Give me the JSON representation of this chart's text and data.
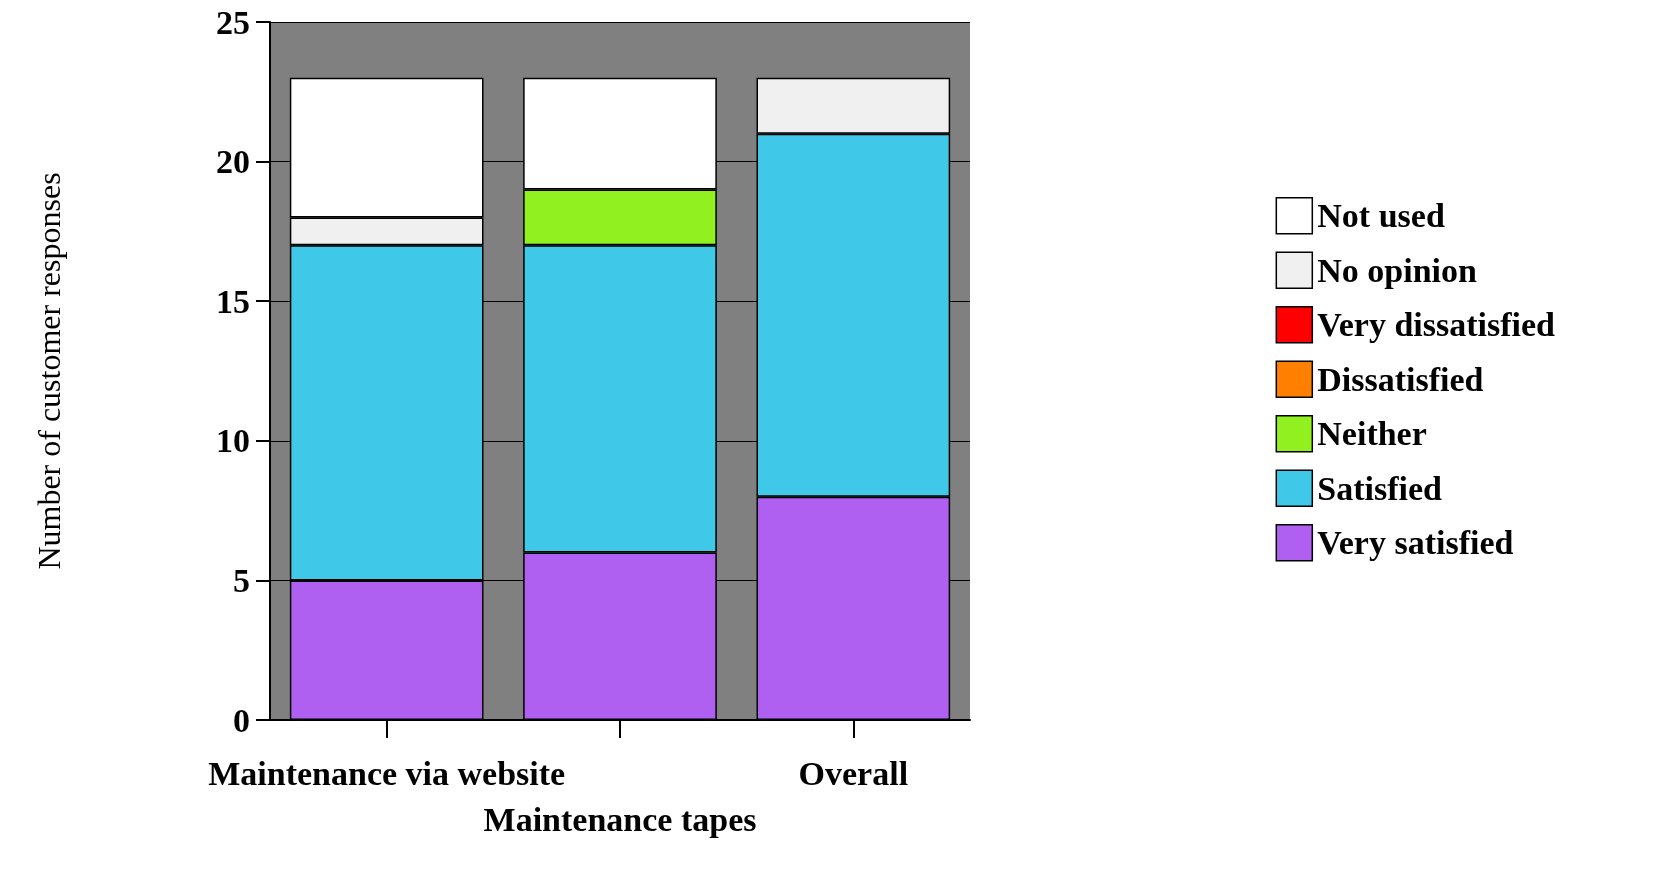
{
  "chart_data": {
    "type": "bar",
    "stacked": true,
    "ylabel": "Number of customer responses",
    "categories": [
      "Maintenance via website",
      "Maintenance tapes",
      "Overall"
    ],
    "series": [
      {
        "name": "Very satisfied",
        "color": "#b060f0",
        "values": [
          5,
          6,
          8
        ]
      },
      {
        "name": "Satisfied",
        "color": "#40c8e8",
        "values": [
          12,
          11,
          13
        ]
      },
      {
        "name": "Neither",
        "color": "#90f020",
        "values": [
          0,
          2,
          0
        ]
      },
      {
        "name": "Dissatisfied",
        "color": "#ff8000",
        "values": [
          0,
          0,
          0
        ]
      },
      {
        "name": "Very dissatisfied",
        "color": "#ff0000",
        "values": [
          0,
          0,
          0
        ]
      },
      {
        "name": "No opinion",
        "color": "#f0f0f0",
        "values": [
          1,
          0,
          2
        ]
      },
      {
        "name": "Not used",
        "color": "#ffffff",
        "values": [
          5,
          4,
          0
        ]
      }
    ],
    "ylim": [
      0,
      25
    ],
    "yticks": [
      0,
      5,
      10,
      15,
      20,
      25
    ],
    "grid": "y",
    "legend": "right"
  }
}
